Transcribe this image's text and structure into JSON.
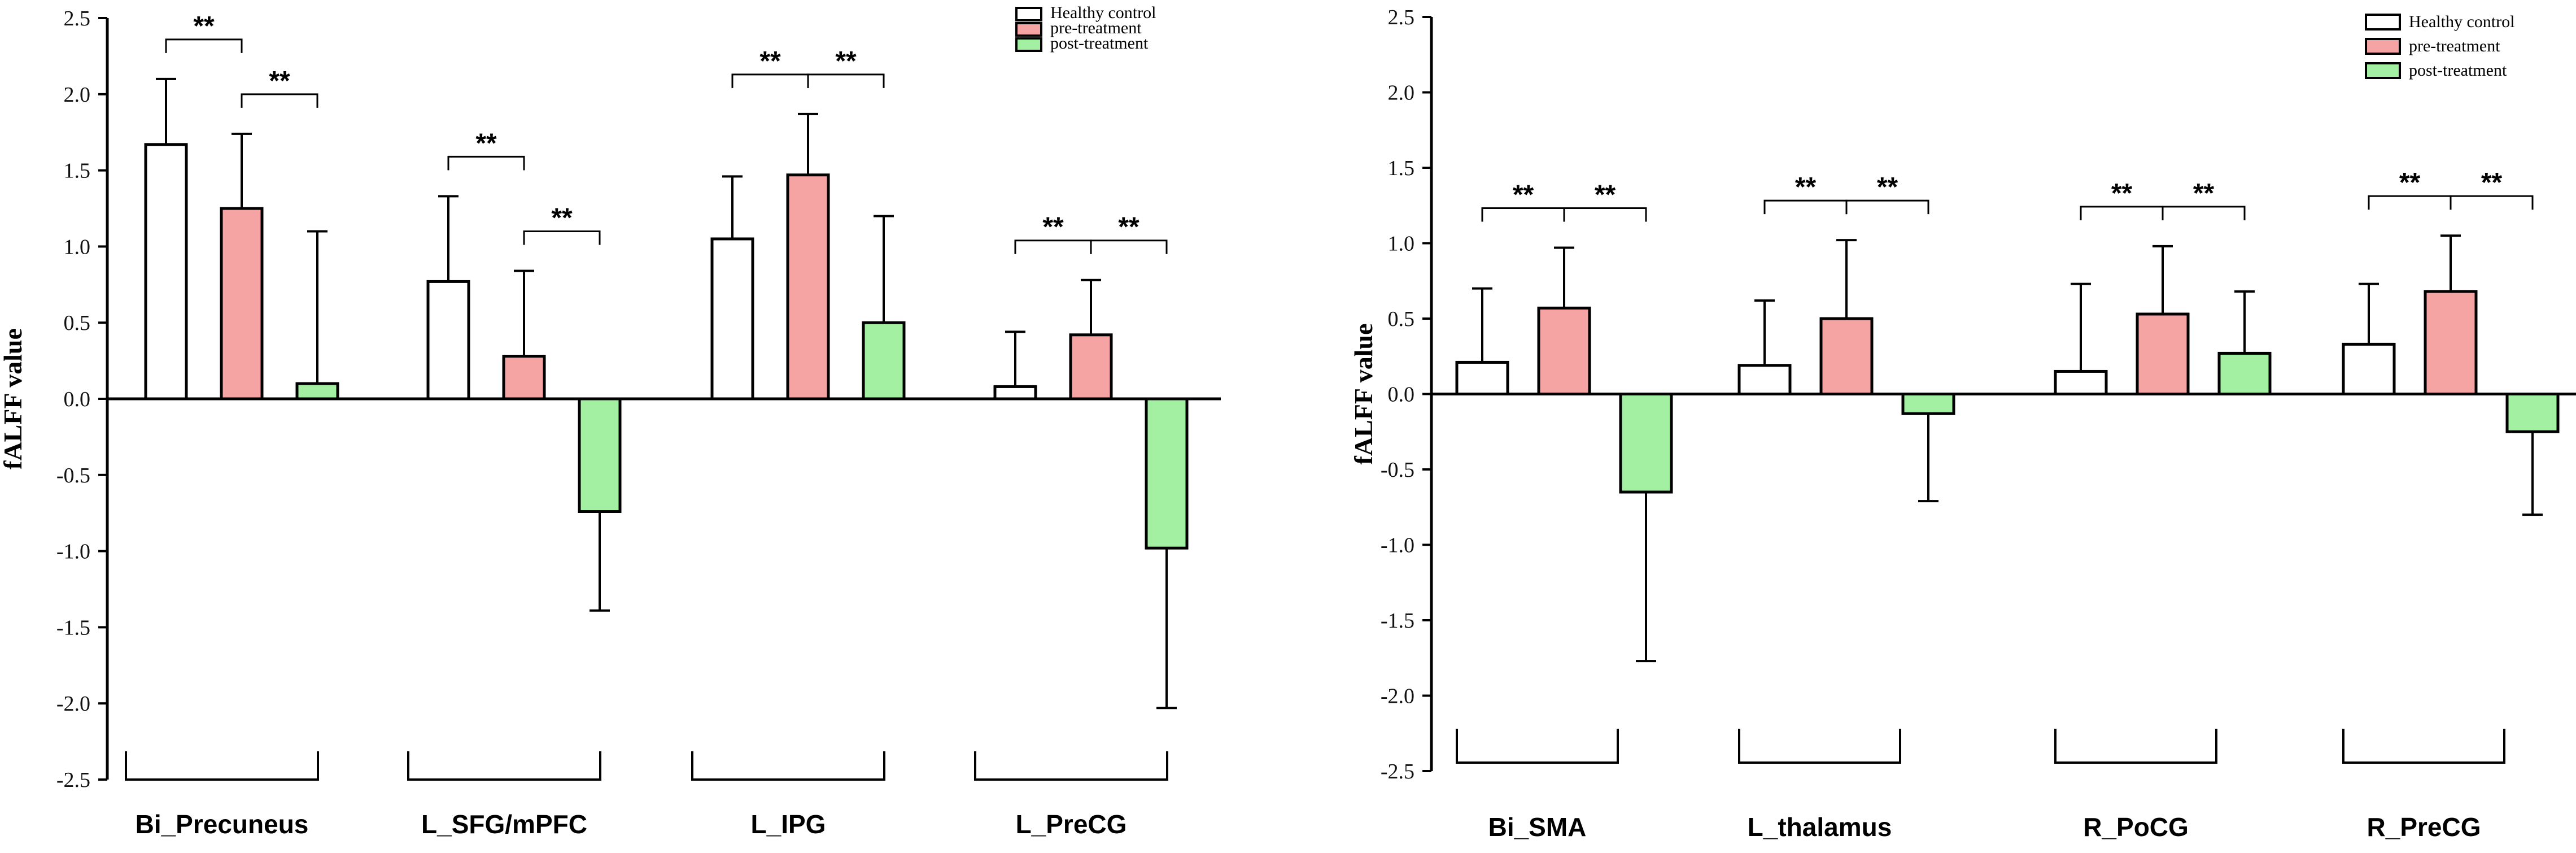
{
  "chart_data": [
    {
      "type": "bar",
      "ylabel": "fALFF value",
      "ylim": [
        -2.5,
        2.5
      ],
      "yticks": [
        "2.5",
        "2.0",
        "1.5",
        "1.0",
        "0.5",
        "0.0",
        "-0.5",
        "-1.0",
        "-1.5",
        "-2.0",
        "-2.5"
      ],
      "categories": [
        "Bi_Precuneus",
        "L_SFG/mPFC",
        "L_IPG",
        "L_PreCG"
      ],
      "legend_position": "top-right",
      "series": [
        {
          "name": "Healthy control",
          "color": "#ffffff",
          "values": [
            1.67,
            0.77,
            1.05,
            0.08
          ],
          "errors": [
            0.43,
            0.56,
            0.41,
            0.36
          ]
        },
        {
          "name": "pre-treatment",
          "color": "#f5a3a3",
          "values": [
            1.25,
            0.28,
            1.47,
            0.42
          ],
          "errors": [
            0.49,
            0.56,
            0.4,
            0.36
          ]
        },
        {
          "name": "post-treatment",
          "color": "#a3f0a3",
          "values": [
            0.1,
            -0.74,
            0.5,
            -0.98
          ],
          "errors": [
            1.0,
            0.65,
            0.7,
            1.05
          ]
        }
      ],
      "significance": {
        "label": "**",
        "pairs": [
          [
            0,
            1
          ],
          [
            1,
            2
          ]
        ]
      }
    },
    {
      "type": "bar",
      "ylabel": "fALFF value",
      "ylim": [
        -2.5,
        2.5
      ],
      "yticks": [
        "2.5",
        "2.0",
        "1.5",
        "1.0",
        "0.5",
        "0.0",
        "-0.5",
        "-1.0",
        "-1.5",
        "-2.0",
        "-2.5"
      ],
      "categories": [
        "Bi_SMA",
        "L_thalamus",
        "R_PoCG",
        "R_PreCG"
      ],
      "legend_position": "top-right",
      "series": [
        {
          "name": "Healthy control",
          "color": "#ffffff",
          "values": [
            0.21,
            0.19,
            0.15,
            0.33
          ],
          "errors": [
            0.49,
            0.43,
            0.58,
            0.4
          ]
        },
        {
          "name": "pre-treatment",
          "color": "#f5a3a3",
          "values": [
            0.57,
            0.5,
            0.53,
            0.68
          ],
          "errors": [
            0.4,
            0.52,
            0.45,
            0.37
          ]
        },
        {
          "name": "post-treatment",
          "color": "#a3f0a3",
          "values": [
            -0.65,
            -0.13,
            0.27,
            -0.25
          ],
          "errors": [
            1.12,
            0.58,
            0.41,
            0.55
          ]
        }
      ],
      "significance": {
        "label": "**",
        "pairs": [
          [
            0,
            1
          ],
          [
            1,
            2
          ]
        ]
      }
    }
  ]
}
